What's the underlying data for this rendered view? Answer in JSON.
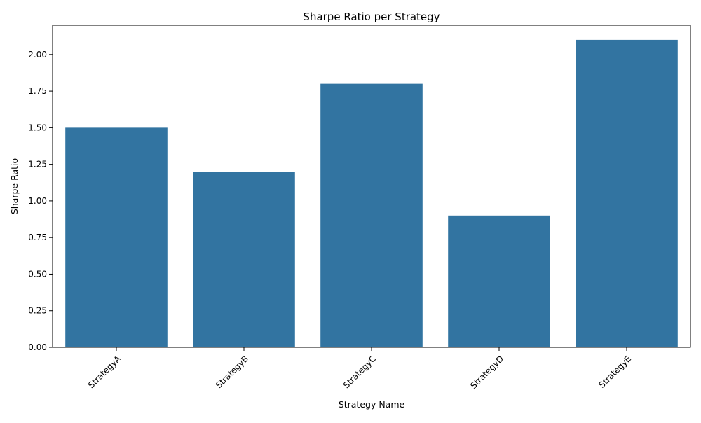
{
  "chart_data": {
    "type": "bar",
    "title": "Sharpe Ratio per Strategy",
    "xlabel": "Strategy Name",
    "ylabel": "Sharpe Ratio",
    "categories": [
      "StrategyA",
      "StrategyB",
      "StrategyC",
      "StrategyD",
      "StrategyE"
    ],
    "values": [
      1.5,
      1.2,
      1.8,
      0.9,
      2.1
    ],
    "ylim": [
      0,
      2.2
    ],
    "yticks": [
      "0.00",
      "0.25",
      "0.50",
      "0.75",
      "1.00",
      "1.25",
      "1.50",
      "1.75",
      "2.00"
    ],
    "bar_color": "#3274a1",
    "grid": false,
    "legend": "none"
  }
}
